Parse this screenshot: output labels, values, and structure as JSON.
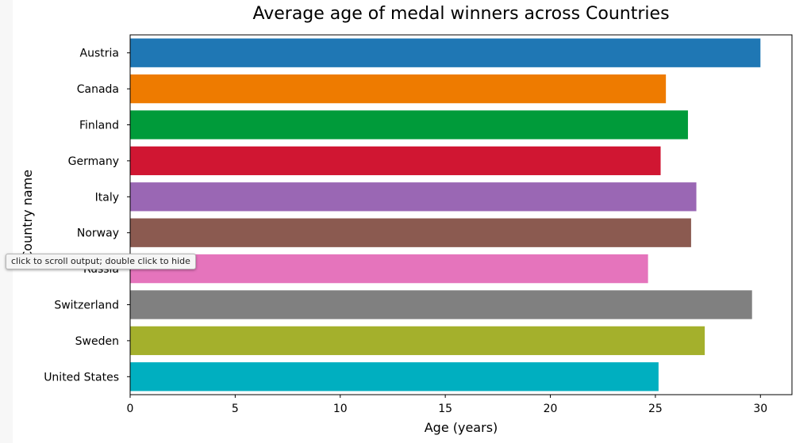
{
  "chart_data": {
    "type": "bar",
    "orientation": "horizontal",
    "title": "Average age of medal winners across Countries",
    "xlabel": "Age (years)",
    "ylabel": "Country name",
    "categories": [
      "Austria",
      "Canada",
      "Finland",
      "Germany",
      "Italy",
      "Norway",
      "Russia",
      "Switzerland",
      "Sweden",
      "United States"
    ],
    "values": [
      30.0,
      25.5,
      26.55,
      25.25,
      26.95,
      26.7,
      24.65,
      29.6,
      27.35,
      25.15
    ],
    "colors": [
      "#1f77b4",
      "#ee7b00",
      "#009b3a",
      "#d01632",
      "#9a67b4",
      "#8b5a50",
      "#e574bc",
      "#808080",
      "#a4b02c",
      "#00afc0"
    ],
    "xlim": [
      0,
      31.5
    ],
    "xticks": [
      0,
      5,
      10,
      15,
      20,
      25,
      30
    ],
    "grid": false,
    "legend": "none"
  },
  "tooltip": {
    "text": "click to scroll output; double click to hide"
  }
}
